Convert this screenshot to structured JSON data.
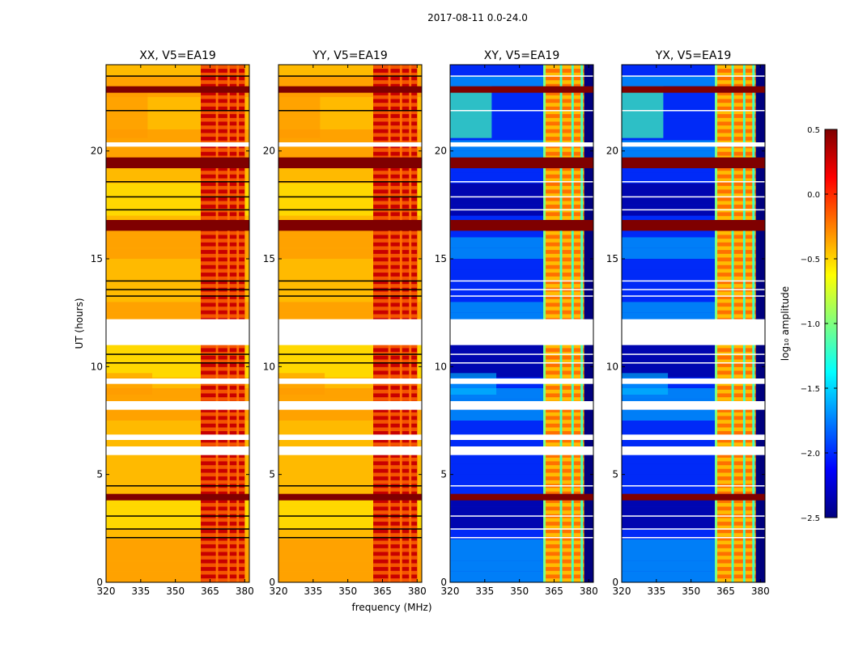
{
  "chart_data": {
    "type": "heatmap",
    "suptitle": "2017-08-11 0.0-24.0",
    "xlabel": "frequency (MHz)",
    "ylabel": "UT (hours)",
    "xlim": [
      320,
      382
    ],
    "ylim": [
      0,
      24
    ],
    "xticks": [
      320,
      335,
      350,
      365,
      380
    ],
    "yticks": [
      0,
      5,
      10,
      15,
      20
    ],
    "colorbar": {
      "label": "log₁₀ amplitude",
      "range": [
        -2.5,
        0.5
      ],
      "ticks": [
        "0.5",
        "0.0",
        "−0.5",
        "−1.0",
        "−1.5",
        "−2.0",
        "−2.5"
      ],
      "colormap": "jet",
      "colors": [
        "#00007f",
        "#0000ff",
        "#007fff",
        "#00ffff",
        "#7fff7f",
        "#ffff00",
        "#ff7f00",
        "#ff0000",
        "#7f0000"
      ]
    },
    "panels": [
      {
        "title": "XX, V5=EA19",
        "kind": "auto"
      },
      {
        "title": "YY, V5=EA19",
        "kind": "auto"
      },
      {
        "title": "XY, V5=EA19",
        "kind": "cross"
      },
      {
        "title": "YX, V5=EA19",
        "kind": "cross"
      }
    ],
    "rfi_band_mhz": [
      361,
      380
    ],
    "rfi_channel_gaps_mhz": [
      [
        367.5,
        368.5
      ],
      [
        372.5,
        373.5
      ],
      [
        376.5,
        377.5
      ]
    ],
    "cross_bandpass_mhz": [
      320,
      378
    ],
    "flagged_ut_gaps_hours": [
      [
        11.0,
        12.2
      ],
      [
        5.9,
        6.3
      ],
      [
        8.0,
        8.4
      ],
      [
        9.2,
        9.45
      ],
      [
        6.6,
        6.85
      ],
      [
        20.2,
        20.4
      ]
    ],
    "strong_rfi_ut_hours": [
      [
        16.3,
        16.8
      ],
      [
        22.7,
        23.0
      ],
      [
        3.8,
        4.1
      ],
      [
        19.2,
        19.7
      ]
    ]
  }
}
